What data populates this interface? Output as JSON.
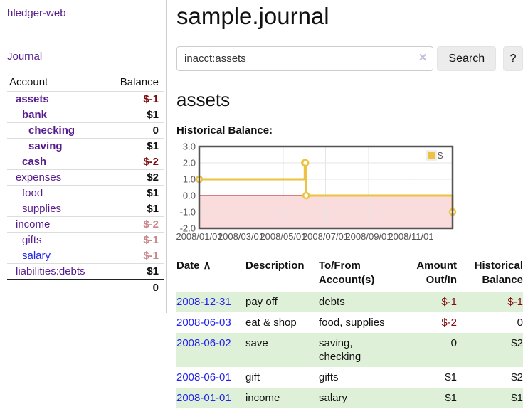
{
  "app": {
    "brand": "hledger-web",
    "nav_journal": "Journal"
  },
  "colors": {
    "link_purple": "#571c8d",
    "link_blue": "#2323ee",
    "negative_strong": "#7f0c0c",
    "negative_muted": "#c9868a",
    "row_stripe_green": "#dff0d8",
    "series_yellow": "#EDC240",
    "negative_region_pink": "#fbdcdc",
    "zero_line_red": "#a40000",
    "chart_border": "#545454",
    "grid_line": "#e5e5e5"
  },
  "sidebar": {
    "headers": [
      "Account",
      "Balance"
    ],
    "accounts": [
      {
        "name": "assets",
        "indent": 1,
        "bold": true,
        "link_color": "purple",
        "balance": "$-1",
        "tone": "neg"
      },
      {
        "name": "bank",
        "indent": 2,
        "bold": true,
        "link_color": "purple",
        "balance": "$1",
        "tone": "pos"
      },
      {
        "name": "checking",
        "indent": 3,
        "bold": true,
        "link_color": "purple",
        "balance": "0",
        "tone": "pos"
      },
      {
        "name": "saving",
        "indent": 3,
        "bold": true,
        "link_color": "purple",
        "balance": "$1",
        "tone": "pos"
      },
      {
        "name": "cash",
        "indent": 2,
        "bold": true,
        "link_color": "purple",
        "balance": "$-2",
        "tone": "neg"
      },
      {
        "name": "expenses",
        "indent": 1,
        "bold": false,
        "link_color": "purple",
        "balance": "$2",
        "tone": "pos"
      },
      {
        "name": "food",
        "indent": 2,
        "bold": false,
        "link_color": "purple",
        "balance": "$1",
        "tone": "pos"
      },
      {
        "name": "supplies",
        "indent": 2,
        "bold": false,
        "link_color": "purple",
        "balance": "$1",
        "tone": "pos"
      },
      {
        "name": "income",
        "indent": 1,
        "bold": false,
        "link_color": "purple",
        "balance": "$-2",
        "tone": "negmuted"
      },
      {
        "name": "gifts",
        "indent": 2,
        "bold": false,
        "link_color": "purple",
        "balance": "$-1",
        "tone": "negmuted"
      },
      {
        "name": "salary",
        "indent": 2,
        "bold": false,
        "link_color": "blue",
        "balance": "$-1",
        "tone": "negmuted"
      },
      {
        "name": "liabilities:debts",
        "indent": 1,
        "bold": false,
        "link_color": "purple",
        "balance": "$1",
        "tone": "pos"
      }
    ],
    "total": "0"
  },
  "main": {
    "title": "sample.journal",
    "search": {
      "value": "inacct:assets",
      "clear_icon": "✕",
      "button_label": "Search",
      "help_label": "?"
    },
    "account_heading": "assets",
    "chart_label": "Historical Balance:",
    "register": {
      "headers": [
        "Date",
        "Description",
        "To/From Account(s)",
        "Amount Out/In",
        "Historical Balance"
      ],
      "sort_icon": "∧",
      "rows": [
        {
          "date": "2008-12-31",
          "description": "pay off",
          "accounts": "debts",
          "amount": "$-1",
          "amount_tone": "neg",
          "balance": "$-1",
          "balance_tone": "neg"
        },
        {
          "date": "2008-06-03",
          "description": "eat & shop",
          "accounts": "food, supplies",
          "amount": "$-2",
          "amount_tone": "neg",
          "balance": "0",
          "balance_tone": "pos"
        },
        {
          "date": "2008-06-02",
          "description": "save",
          "accounts": "saving, checking",
          "amount": "0",
          "amount_tone": "pos",
          "balance": "$2",
          "balance_tone": "pos"
        },
        {
          "date": "2008-06-01",
          "description": "gift",
          "accounts": "gifts",
          "amount": "$1",
          "amount_tone": "pos",
          "balance": "$2",
          "balance_tone": "pos"
        },
        {
          "date": "2008-01-01",
          "description": "income",
          "accounts": "salary",
          "amount": "$1",
          "amount_tone": "pos",
          "balance": "$1",
          "balance_tone": "pos"
        }
      ]
    }
  },
  "chart_data": {
    "type": "line",
    "step": true,
    "title": "Historical Balance",
    "series": [
      {
        "name": "$",
        "color": "#EDC240",
        "points": [
          [
            "2008-01-01",
            1
          ],
          [
            "2008-06-01",
            2
          ],
          [
            "2008-06-02",
            2
          ],
          [
            "2008-06-03",
            0
          ],
          [
            "2008-12-31",
            -1
          ]
        ]
      }
    ],
    "x_range": [
      "2008-01-01",
      "2008-12-31"
    ],
    "x_ticks": [
      {
        "value": "2008-01-01",
        "label": "2008/01/01"
      },
      {
        "value": "2008-03-01",
        "label": "2008/03/01"
      },
      {
        "value": "2008-05-01",
        "label": "2008/05/01"
      },
      {
        "value": "2008-07-01",
        "label": "2008/07/01"
      },
      {
        "value": "2008-09-01",
        "label": "2008/09/01"
      },
      {
        "value": "2008-11-01",
        "label": "2008/11/01"
      }
    ],
    "ylim": [
      -2,
      3
    ],
    "y_ticks": [
      3.0,
      2.0,
      1.0,
      0.0,
      -1.0,
      -2.0
    ],
    "legend": {
      "label": "$",
      "position": "top-right"
    },
    "grid": true,
    "negative_region_color": "#fbdcdc",
    "zero_line_color": "#a40000"
  }
}
